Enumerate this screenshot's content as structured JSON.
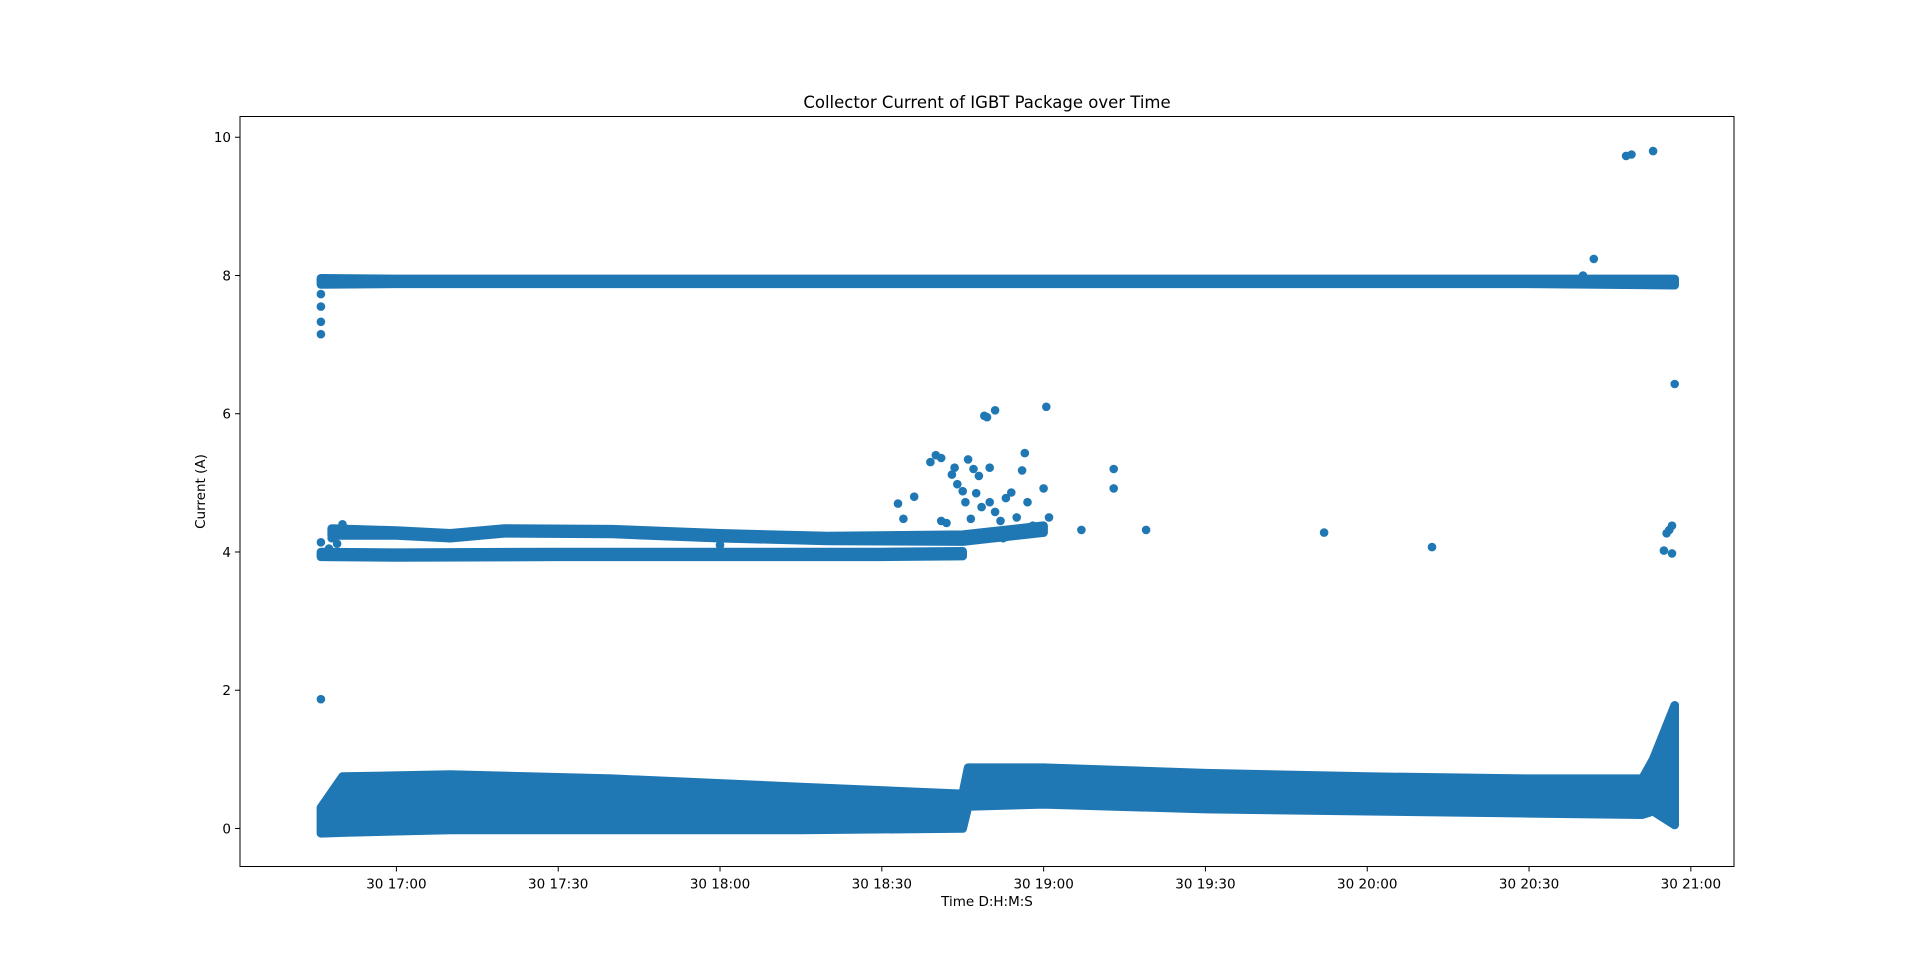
{
  "chart_data": {
    "type": "scatter",
    "title": "Collector Current of IGBT Package over Time",
    "xlabel": "Time D:H:M:S",
    "ylabel": "Current (A)",
    "xlim": [
      "30 16:31:00",
      "30 21:08:00"
    ],
    "ylim": [
      -0.55,
      10.3
    ],
    "grid": false,
    "legend": "none",
    "marker_color": "#1f77b4",
    "x_ticks": [
      {
        "value": "30 17:00:00",
        "label": "30 17:00"
      },
      {
        "value": "30 17:30:00",
        "label": "30 17:30"
      },
      {
        "value": "30 18:00:00",
        "label": "30 18:00"
      },
      {
        "value": "30 18:30:00",
        "label": "30 18:30"
      },
      {
        "value": "30 19:00:00",
        "label": "30 19:00"
      },
      {
        "value": "30 19:30:00",
        "label": "30 19:30"
      },
      {
        "value": "30 20:00:00",
        "label": "30 20:00"
      },
      {
        "value": "30 20:30:00",
        "label": "30 20:30"
      },
      {
        "value": "30 21:00:00",
        "label": "30 21:00"
      }
    ],
    "y_ticks": [
      {
        "value": 0,
        "label": "0"
      },
      {
        "value": 2,
        "label": "2"
      },
      {
        "value": 4,
        "label": "4"
      },
      {
        "value": 6,
        "label": "6"
      },
      {
        "value": 8,
        "label": "8"
      },
      {
        "value": 10,
        "label": "10"
      }
    ],
    "dense_bands": [
      {
        "name": "",
        "x": [
          "30 16:46:00",
          "30 16:50:00",
          "30 17:10:00",
          "30 17:40:00",
          "30 18:15:00",
          "30 18:45:00",
          "30 18:46:00",
          "30 19:00:00",
          "30 19:30:00",
          "30 20:00:00",
          "30 20:30:00",
          "30 20:51:00",
          "30 20:53:00",
          "30 20:57:00"
        ],
        "y_low": [
          -0.07,
          -0.06,
          -0.02,
          -0.02,
          -0.02,
          0.0,
          0.32,
          0.35,
          0.28,
          0.25,
          0.22,
          0.2,
          0.25,
          0.05
        ],
        "y_high": [
          0.3,
          0.75,
          0.78,
          0.72,
          0.6,
          0.5,
          0.88,
          0.88,
          0.8,
          0.75,
          0.72,
          0.72,
          1.0,
          1.78
        ]
      },
      {
        "name": "",
        "x": [
          "30 16:46:00",
          "30 17:00:00",
          "30 17:15:00",
          "30 17:30:00",
          "30 18:00:00",
          "30 18:30:00",
          "30 18:45:00",
          "30 19:00:00",
          "30 19:30:00",
          "30 20:00:00",
          "30 20:30:00",
          "30 20:57:00"
        ],
        "y_low": [
          7.87,
          7.88,
          7.88,
          7.88,
          7.88,
          7.88,
          7.88,
          7.88,
          7.88,
          7.88,
          7.88,
          7.86
        ],
        "y_high": [
          7.96,
          7.95,
          7.95,
          7.95,
          7.95,
          7.95,
          7.95,
          7.95,
          7.95,
          7.95,
          7.95,
          7.95
        ]
      },
      {
        "name": "",
        "x": [
          "30 16:48:00",
          "30 17:00:00",
          "30 17:10:00",
          "30 17:20:00",
          "30 17:40:00",
          "30 18:00:00",
          "30 18:20:00",
          "30 18:45:00",
          "30 19:00:00"
        ],
        "y_low": [
          4.24,
          4.24,
          4.2,
          4.27,
          4.26,
          4.2,
          4.16,
          4.15,
          4.28
        ],
        "y_high": [
          4.34,
          4.31,
          4.27,
          4.34,
          4.33,
          4.27,
          4.23,
          4.25,
          4.38
        ]
      },
      {
        "name": "",
        "x": [
          "30 16:46:00",
          "30 17:00:00",
          "30 17:30:00",
          "30 18:00:00",
          "30 18:30:00",
          "30 18:45:00"
        ],
        "y_low": [
          3.93,
          3.92,
          3.93,
          3.93,
          3.93,
          3.94
        ],
        "y_high": [
          4.0,
          3.99,
          4.0,
          4.0,
          4.0,
          4.01
        ]
      }
    ],
    "scatter_points": [
      {
        "x": "30 16:46:00",
        "y": 7.15
      },
      {
        "x": "30 16:46:00",
        "y": 7.33
      },
      {
        "x": "30 16:46:00",
        "y": 7.55
      },
      {
        "x": "30 16:46:00",
        "y": 7.73
      },
      {
        "x": "30 16:46:00",
        "y": 1.87
      },
      {
        "x": "30 16:46:00",
        "y": 4.14
      },
      {
        "x": "30 16:47:30",
        "y": 4.05
      },
      {
        "x": "30 16:48:00",
        "y": 4.2
      },
      {
        "x": "30 16:49:00",
        "y": 4.12
      },
      {
        "x": "30 16:50:00",
        "y": 4.4
      },
      {
        "x": "30 18:00:00",
        "y": 4.1
      },
      {
        "x": "30 18:33:00",
        "y": 4.7
      },
      {
        "x": "30 18:34:00",
        "y": 4.48
      },
      {
        "x": "30 18:36:00",
        "y": 4.8
      },
      {
        "x": "30 18:39:00",
        "y": 5.3
      },
      {
        "x": "30 18:40:00",
        "y": 5.4
      },
      {
        "x": "30 18:41:00",
        "y": 5.36
      },
      {
        "x": "30 18:41:00",
        "y": 4.45
      },
      {
        "x": "30 18:42:00",
        "y": 4.42
      },
      {
        "x": "30 18:43:00",
        "y": 5.12
      },
      {
        "x": "30 18:43:30",
        "y": 5.22
      },
      {
        "x": "30 18:44:00",
        "y": 4.98
      },
      {
        "x": "30 18:45:00",
        "y": 4.88
      },
      {
        "x": "30 18:45:30",
        "y": 4.72
      },
      {
        "x": "30 18:46:00",
        "y": 5.34
      },
      {
        "x": "30 18:46:30",
        "y": 4.48
      },
      {
        "x": "30 18:47:00",
        "y": 5.2
      },
      {
        "x": "30 18:47:30",
        "y": 4.85
      },
      {
        "x": "30 18:48:00",
        "y": 5.1
      },
      {
        "x": "30 18:48:30",
        "y": 4.65
      },
      {
        "x": "30 18:49:00",
        "y": 5.97
      },
      {
        "x": "30 18:49:30",
        "y": 5.95
      },
      {
        "x": "30 18:50:00",
        "y": 5.22
      },
      {
        "x": "30 18:50:00",
        "y": 4.72
      },
      {
        "x": "30 18:51:00",
        "y": 4.58
      },
      {
        "x": "30 18:51:00",
        "y": 6.05
      },
      {
        "x": "30 18:52:00",
        "y": 4.45
      },
      {
        "x": "30 18:52:30",
        "y": 4.2
      },
      {
        "x": "30 18:53:00",
        "y": 4.78
      },
      {
        "x": "30 18:54:00",
        "y": 4.86
      },
      {
        "x": "30 18:55:00",
        "y": 4.5
      },
      {
        "x": "30 18:56:00",
        "y": 5.18
      },
      {
        "x": "30 18:56:30",
        "y": 5.43
      },
      {
        "x": "30 18:57:00",
        "y": 4.72
      },
      {
        "x": "30 18:58:00",
        "y": 4.38
      },
      {
        "x": "30 19:00:00",
        "y": 4.92
      },
      {
        "x": "30 19:00:30",
        "y": 6.1
      },
      {
        "x": "30 19:01:00",
        "y": 4.5
      },
      {
        "x": "30 19:07:00",
        "y": 4.32
      },
      {
        "x": "30 19:13:00",
        "y": 4.92
      },
      {
        "x": "30 19:13:00",
        "y": 5.2
      },
      {
        "x": "30 19:19:00",
        "y": 4.32
      },
      {
        "x": "30 19:52:00",
        "y": 4.28
      },
      {
        "x": "30 20:12:00",
        "y": 4.07
      },
      {
        "x": "30 20:40:00",
        "y": 8.0
      },
      {
        "x": "30 20:42:00",
        "y": 8.24
      },
      {
        "x": "30 20:48:00",
        "y": 9.73
      },
      {
        "x": "30 20:49:00",
        "y": 9.75
      },
      {
        "x": "30 20:53:00",
        "y": 9.8
      },
      {
        "x": "30 20:55:00",
        "y": 4.02
      },
      {
        "x": "30 20:55:30",
        "y": 4.27
      },
      {
        "x": "30 20:56:00",
        "y": 4.32
      },
      {
        "x": "30 20:56:30",
        "y": 4.38
      },
      {
        "x": "30 20:56:30",
        "y": 3.98
      },
      {
        "x": "30 20:57:00",
        "y": 6.43
      },
      {
        "x": "30 20:57:00",
        "y": 1.78
      }
    ]
  }
}
